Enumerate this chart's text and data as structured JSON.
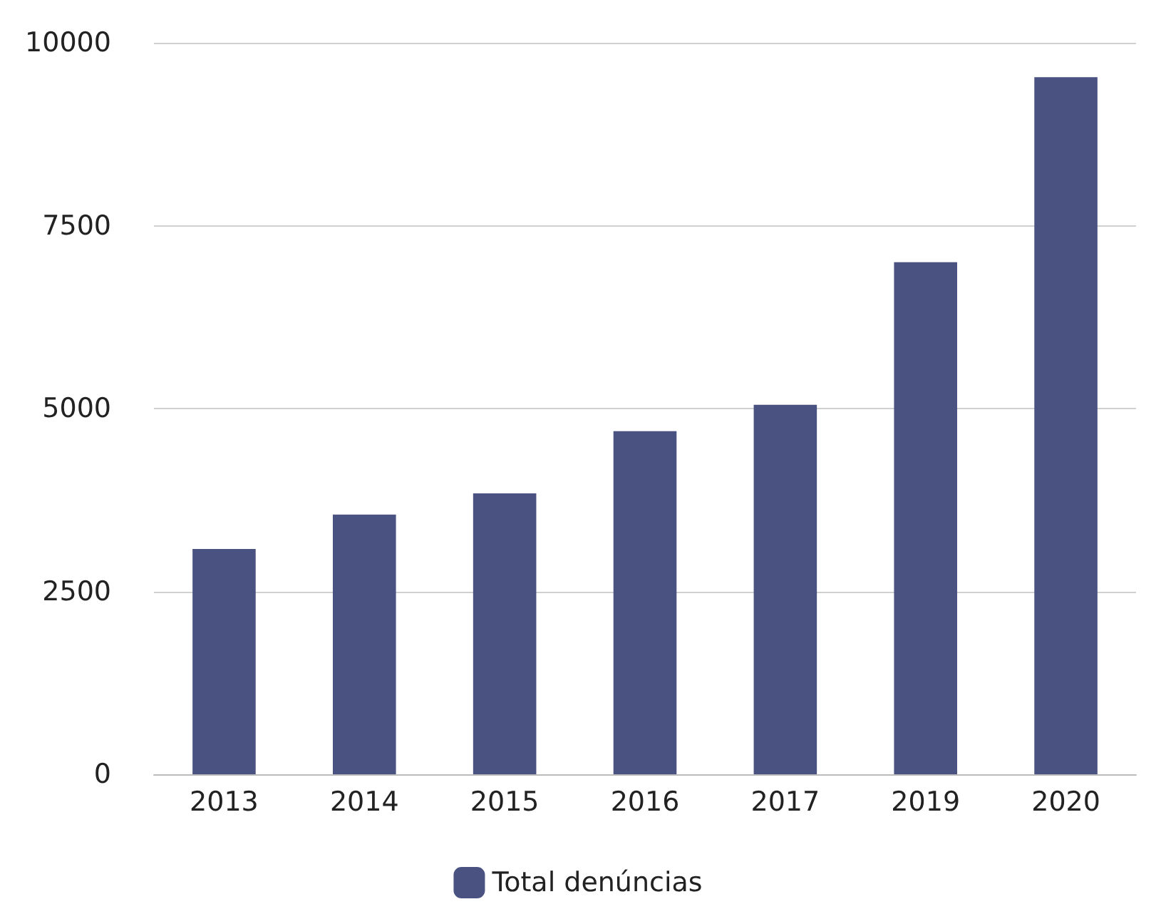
{
  "chart_data": {
    "type": "bar",
    "categories": [
      "2013",
      "2014",
      "2015",
      "2016",
      "2017",
      "2019",
      "2020"
    ],
    "series": [
      {
        "name": "Total denúncias",
        "color": "#4a5282",
        "values": [
          3080,
          3550,
          3840,
          4690,
          5050,
          7000,
          9530
        ]
      }
    ],
    "ylim": [
      0,
      10000
    ],
    "yticks": [
      0,
      2500,
      5000,
      7500,
      10000
    ],
    "grid": "y",
    "legend": "bottom"
  }
}
